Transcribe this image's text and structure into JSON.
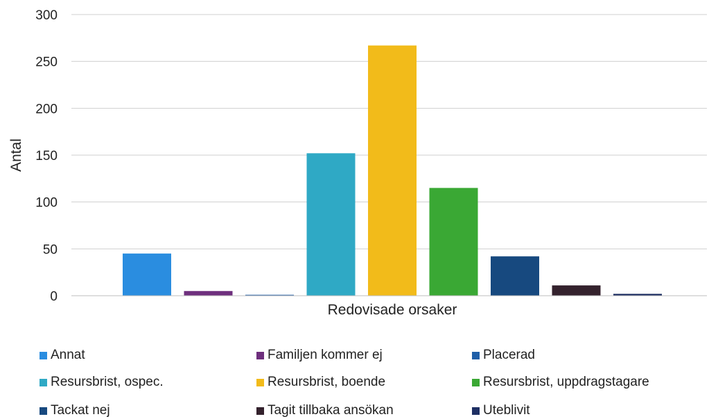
{
  "chart_data": {
    "type": "bar",
    "title": "",
    "xlabel": "Redovisade orsaker",
    "ylabel": "Antal",
    "ylim": [
      0,
      300
    ],
    "yticks": [
      0,
      50,
      100,
      150,
      200,
      250,
      300
    ],
    "grid": true,
    "legend_position": "bottom",
    "series": [
      {
        "name": "Annat",
        "value": 45,
        "color": "#2a8de0"
      },
      {
        "name": "Familjen kommer ej",
        "value": 5,
        "color": "#6e2f7d"
      },
      {
        "name": "Placerad",
        "value": 1,
        "color": "#1f5fa8"
      },
      {
        "name": "Resursbrist, ospec.",
        "value": 152,
        "color": "#2fa9c5"
      },
      {
        "name": "Resursbrist, boende",
        "value": 267,
        "color": "#f2bb1a"
      },
      {
        "name": "Resursbrist, uppdragstagare",
        "value": 115,
        "color": "#3aa834"
      },
      {
        "name": "Tackat nej",
        "value": 42,
        "color": "#17497f"
      },
      {
        "name": "Tagit tillbaka ansökan",
        "value": 11,
        "color": "#34222d"
      },
      {
        "name": "Uteblivit",
        "value": 2,
        "color": "#1e2f63"
      }
    ]
  }
}
